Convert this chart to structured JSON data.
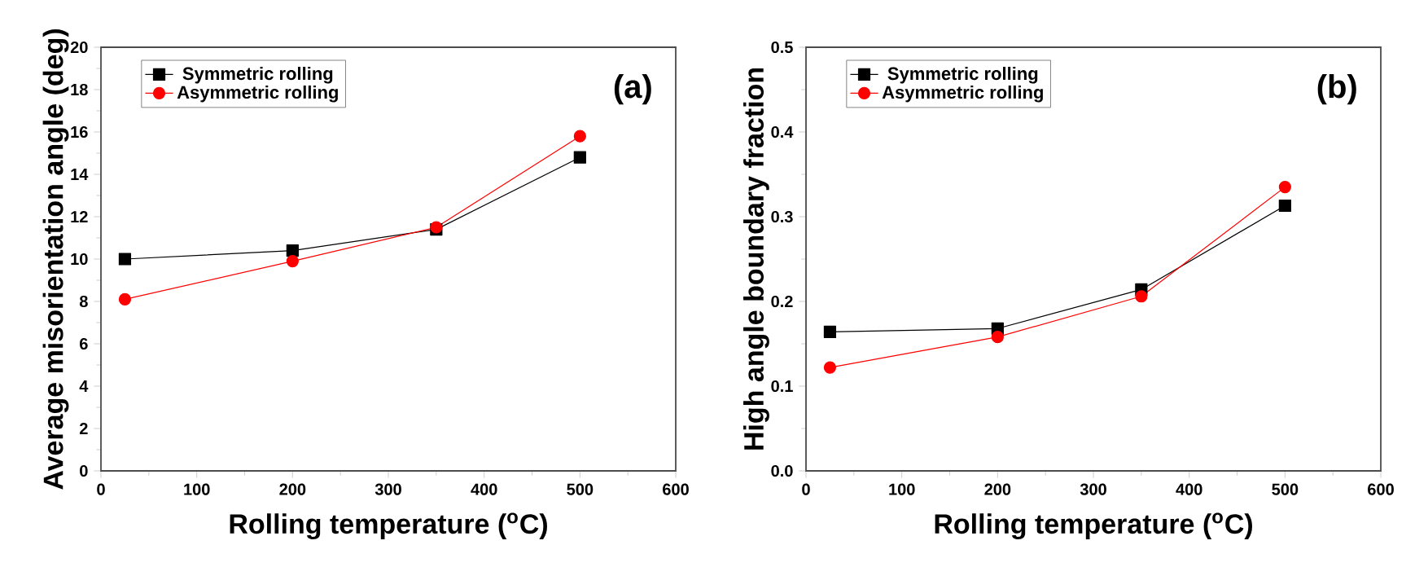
{
  "chart_data": [
    {
      "type": "line",
      "xlabel": "Rolling temperature ($^{o}$C)",
      "ylabel": "Average misorientation angle (deg)",
      "annotations": [
        "(a)"
      ],
      "legend": "top left",
      "xlim": [
        0,
        600
      ],
      "xticks": [
        0,
        100,
        200,
        300,
        400,
        500,
        600
      ],
      "ylim": [
        0,
        20
      ],
      "yticks": [
        0,
        2,
        4,
        6,
        8,
        10,
        12,
        14,
        16,
        18,
        20
      ],
      "series": [
        {
          "name": "Symmetric rolling",
          "color": "#000000",
          "marker": "square",
          "x": [
            25,
            200,
            350,
            500
          ],
          "values": [
            10.0,
            10.4,
            11.4,
            14.8
          ]
        },
        {
          "name": "Asymmetric rolling",
          "color": "#ff0000",
          "marker": "circle",
          "x": [
            25,
            200,
            350,
            500
          ],
          "values": [
            8.1,
            9.9,
            11.5,
            15.8
          ]
        }
      ]
    },
    {
      "type": "line",
      "xlabel": "Rolling temperature ($^{o}$C)",
      "ylabel": "High angle boundary fraction",
      "annotations": [
        "(b)"
      ],
      "legend": "top left",
      "xlim": [
        0,
        600
      ],
      "xticks": [
        0,
        100,
        200,
        300,
        400,
        500,
        600
      ],
      "ylim": [
        0,
        0.5
      ],
      "yticks": [
        {
          "value": 0,
          "label": "0.0"
        },
        0.1,
        0.2,
        0.3,
        0.4,
        0.5
      ],
      "series": [
        {
          "name": "Symmetric rolling",
          "color": "#000000",
          "marker": "square",
          "x": [
            25,
            200,
            350,
            500
          ],
          "values": [
            0.164,
            0.168,
            0.214,
            0.313
          ]
        },
        {
          "name": "Asymmetric rolling",
          "color": "#ff0000",
          "marker": "circle",
          "x": [
            25,
            200,
            350,
            500
          ],
          "values": [
            0.122,
            0.158,
            0.206,
            0.335
          ]
        }
      ]
    }
  ]
}
